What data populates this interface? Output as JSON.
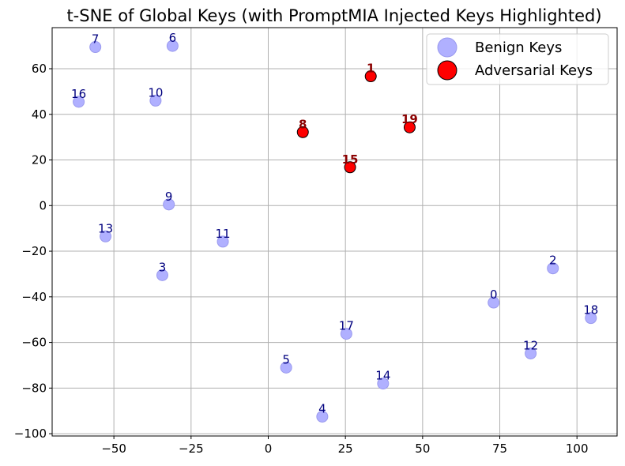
{
  "chart_data": {
    "type": "scatter",
    "title": "t-SNE of Global Keys (with PromptMIA Injected Keys Highlighted)",
    "xlabel": "",
    "ylabel": "",
    "xlim": [
      -70,
      113
    ],
    "ylim": [
      -101,
      78
    ],
    "xticks": [
      -50,
      -25,
      0,
      25,
      50,
      75,
      100
    ],
    "xtick_labels": [
      "−50",
      "−25",
      "0",
      "25",
      "50",
      "75",
      "100"
    ],
    "yticks": [
      -100,
      -80,
      -60,
      -40,
      -20,
      0,
      20,
      40,
      60
    ],
    "ytick_labels": [
      "−100",
      "−80",
      "−60",
      "−40",
      "−20",
      "0",
      "20",
      "40",
      "60"
    ],
    "grid": true,
    "legend_position": "top-right",
    "series": [
      {
        "name": "Benign Keys",
        "color": "#b0b0ff",
        "edge": "#9a9aee",
        "points": [
          {
            "label": "0",
            "x": 73,
            "y": -42.5
          },
          {
            "label": "2",
            "x": 92.2,
            "y": -27.5
          },
          {
            "label": "3",
            "x": -34.3,
            "y": -30.5
          },
          {
            "label": "4",
            "x": 17.5,
            "y": -92.5
          },
          {
            "label": "5",
            "x": 5.8,
            "y": -71
          },
          {
            "label": "6",
            "x": -31,
            "y": 70
          },
          {
            "label": "7",
            "x": -56,
            "y": 69.5
          },
          {
            "label": "9",
            "x": -32.2,
            "y": 0.5
          },
          {
            "label": "10",
            "x": -36.5,
            "y": 46
          },
          {
            "label": "11",
            "x": -14.7,
            "y": -15.8
          },
          {
            "label": "12",
            "x": 85,
            "y": -64.8
          },
          {
            "label": "13",
            "x": -52.7,
            "y": -13.5
          },
          {
            "label": "14",
            "x": 37.2,
            "y": -78
          },
          {
            "label": "16",
            "x": -61.4,
            "y": 45.5
          },
          {
            "label": "17",
            "x": 25.3,
            "y": -56.2
          },
          {
            "label": "18",
            "x": 104.5,
            "y": -49.3
          }
        ]
      },
      {
        "name": "Adversarial Keys",
        "color": "#ff0000",
        "edge": "#000000",
        "points": [
          {
            "label": "1",
            "x": 33.2,
            "y": 56.7
          },
          {
            "label": "8",
            "x": 11.2,
            "y": 32.2
          },
          {
            "label": "15",
            "x": 26.5,
            "y": 16.8
          },
          {
            "label": "19",
            "x": 45.8,
            "y": 34.3
          }
        ]
      }
    ]
  }
}
